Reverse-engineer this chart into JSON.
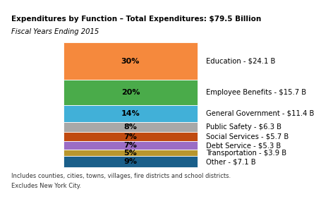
{
  "title_line1": "Expenditures by Function – Total Expenditures: $79.5 Billion",
  "title_line2": "Fiscal Years Ending 2015",
  "title_bg_color": "#dcdcdc",
  "footnote_line1": "Includes counties, cities, towns, villages, fire districts and school districts.",
  "footnote_line2": "Excludes New York City.",
  "segments": [
    {
      "label": "Education - $24.1 B",
      "pct": 30,
      "color": "#f5893d"
    },
    {
      "label": "Employee Benefits - $15.7 B",
      "pct": 20,
      "color": "#4aab4a"
    },
    {
      "label": "General Government - $11.4 B",
      "pct": 14,
      "color": "#41b0d8"
    },
    {
      "label": "Public Safety - $6.3 B",
      "pct": 8,
      "color": "#a8a8a8"
    },
    {
      "label": "Social Services - $5.7 B",
      "pct": 7,
      "color": "#c04a10"
    },
    {
      "label": "Debt Service - $5.3 B",
      "pct": 7,
      "color": "#9b6dc5"
    },
    {
      "label": "Transportation - $3.9 B",
      "pct": 5,
      "color": "#b8962e"
    },
    {
      "label": "Other - $7.1 B",
      "pct": 9,
      "color": "#1a5f8a"
    }
  ],
  "background_color": "#ffffff",
  "title_fontsize": 7.5,
  "subtitle_fontsize": 7.2,
  "pct_fontsize": 8.0,
  "label_fontsize": 7.2,
  "footnote_fontsize": 6.0
}
